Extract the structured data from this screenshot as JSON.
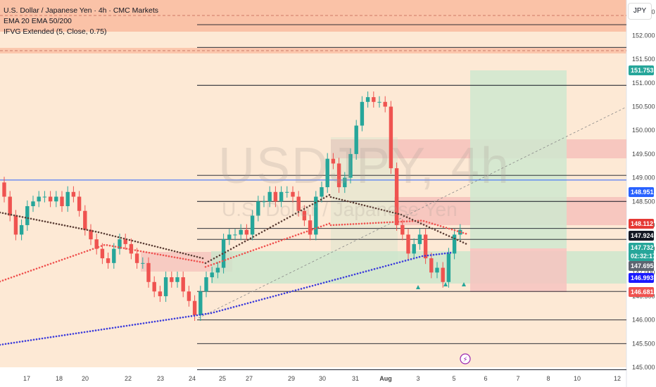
{
  "legend": {
    "symbol": "U.S. Dollar / Japanese Yen · 4h · CMC Markets",
    "ema": "EMA 20 EMA 50/200",
    "ifvg": "IFVG Extended (5, Close, 0.75)"
  },
  "currency_button": "JPY",
  "watermark": {
    "symbol": "USDJPY, 4h",
    "name": "U.S. Dollar / Japanese Yen"
  },
  "colors": {
    "up": "#26a69a",
    "down": "#ef5350",
    "ema20": "#5d4037",
    "ema50": "#ef5350",
    "ema200": "#3d3ddb",
    "bg_peach": "#fde9d5",
    "target_zone": "#cfe7cf",
    "stop_zone": "#f6c3c0"
  },
  "chart_data": {
    "type": "candlestick",
    "y_ticks": [
      "152.500",
      "152.000",
      "151.500",
      "151.000",
      "150.500",
      "150.000",
      "149.500",
      "149.000",
      "148.500",
      "148.000",
      "147.500",
      "147.000",
      "146.500",
      "146.000",
      "145.500",
      "145.000"
    ],
    "ylim": [
      145.0,
      152.75
    ],
    "x_ticks": [
      "17",
      "18",
      "20",
      "22",
      "23",
      "24",
      "25",
      "27",
      "29",
      "30",
      "31",
      "Aug",
      "3",
      "5",
      "6",
      "7",
      "8",
      "10",
      "12"
    ],
    "price_tags": [
      {
        "value": "151.753",
        "color": "#26a69a"
      },
      {
        "value": "148.951",
        "color": "#2962ff"
      },
      {
        "value": "148.112",
        "color": "#e53935"
      },
      {
        "value": "147.924",
        "color": "#131722"
      },
      {
        "value": "147.732",
        "color": "#26a69a"
      },
      {
        "value": "02:32:17",
        "color": "#26a69a"
      },
      {
        "value": "147.695",
        "color": "#5d6470"
      },
      {
        "value": "146.993",
        "color": "#1a1aff"
      },
      {
        "value": "146.681",
        "color": "#ef5350"
      }
    ],
    "horizontal_levels": [
      152.23,
      151.75,
      150.95,
      149.05,
      148.5,
      147.93,
      147.7,
      146.6,
      146.0,
      145.5,
      144.95
    ],
    "blue_line": 148.951,
    "candles_open": [
      148.9,
      148.6,
      148.2,
      147.8,
      148.0,
      148.4,
      148.5,
      148.6,
      148.6,
      148.5,
      148.6,
      148.4,
      148.7,
      148.6,
      148.3,
      147.9,
      147.7,
      147.5,
      147.3,
      147.2,
      147.5,
      147.7,
      147.6,
      147.4,
      147.2,
      147.2,
      146.8,
      146.6,
      146.5,
      146.9,
      146.8,
      146.9,
      146.6,
      146.4,
      146.1,
      146.6,
      146.9,
      147.0,
      147.1,
      147.7,
      147.8,
      147.8,
      147.9,
      147.8,
      148.2,
      148.5,
      148.5,
      148.7,
      148.5,
      148.7,
      148.7,
      148.6,
      148.3,
      148.1,
      147.8,
      148.6,
      148.8,
      149.4,
      149.3,
      148.8,
      149.0,
      149.5,
      150.1,
      150.6,
      150.7,
      150.6,
      150.6,
      150.5,
      149.2,
      148.0,
      147.8,
      147.4,
      147.6,
      147.8,
      147.3,
      147.0,
      147.1,
      146.8,
      147.4,
      147.8
    ],
    "candles_close": [
      148.6,
      148.2,
      147.8,
      148.0,
      148.4,
      148.5,
      148.6,
      148.6,
      148.5,
      148.6,
      148.4,
      148.7,
      148.6,
      148.3,
      147.9,
      147.7,
      147.5,
      147.3,
      147.2,
      147.5,
      147.7,
      147.6,
      147.4,
      147.2,
      147.2,
      146.8,
      146.6,
      146.5,
      146.9,
      146.8,
      146.9,
      146.6,
      146.4,
      146.1,
      146.6,
      146.9,
      147.0,
      147.1,
      147.7,
      147.8,
      147.8,
      147.9,
      147.8,
      148.2,
      148.5,
      148.5,
      148.7,
      148.5,
      148.7,
      148.7,
      148.6,
      148.3,
      148.1,
      147.8,
      148.6,
      148.8,
      149.4,
      149.3,
      148.8,
      149.0,
      149.5,
      150.1,
      150.6,
      150.7,
      150.6,
      150.6,
      150.5,
      149.2,
      148.0,
      147.8,
      147.4,
      147.6,
      147.8,
      147.3,
      147.0,
      147.1,
      146.8,
      147.4,
      147.8,
      147.9
    ]
  }
}
